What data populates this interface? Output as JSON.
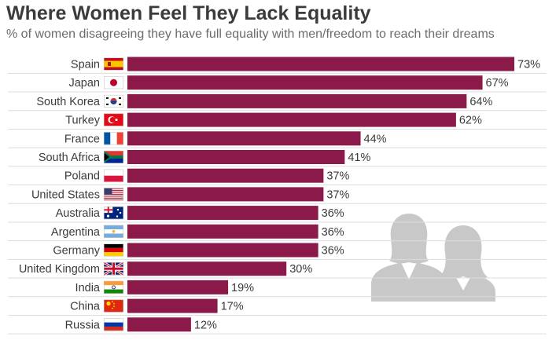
{
  "title": "Where Women Feel They Lack Equality",
  "subtitle": "% of women disagreeing they have full equality with men/freedom to reach their dreams",
  "colors": {
    "bar": "#8b1a4a",
    "grid": "#dcdcdc",
    "silhouette": "#c8c8c8"
  },
  "icons": {
    "decoration": "two-women-silhouette-icon"
  },
  "chart_data": {
    "type": "bar",
    "orientation": "horizontal",
    "title": "Where Women Feel They Lack Equality",
    "subtitle": "% of women disagreeing they have full equality with men/freedom to reach their dreams",
    "xlabel": "",
    "ylabel": "",
    "xlim": [
      0,
      73
    ],
    "categories": [
      "Spain",
      "Japan",
      "South Korea",
      "Turkey",
      "France",
      "South Africa",
      "Poland",
      "United States",
      "Australia",
      "Argentina",
      "Germany",
      "United Kingdom",
      "India",
      "China",
      "Russia"
    ],
    "values": [
      73,
      67,
      64,
      62,
      44,
      41,
      37,
      37,
      36,
      36,
      36,
      30,
      19,
      17,
      12
    ],
    "labels": [
      "73%",
      "67%",
      "64%",
      "62%",
      "44%",
      "41%",
      "37%",
      "37%",
      "36%",
      "36%",
      "36%",
      "30%",
      "19%",
      "17%",
      "12%"
    ],
    "flags": [
      "spain-flag-icon",
      "japan-flag-icon",
      "south-korea-flag-icon",
      "turkey-flag-icon",
      "france-flag-icon",
      "south-africa-flag-icon",
      "poland-flag-icon",
      "united-states-flag-icon",
      "australia-flag-icon",
      "argentina-flag-icon",
      "germany-flag-icon",
      "united-kingdom-flag-icon",
      "india-flag-icon",
      "china-flag-icon",
      "russia-flag-icon"
    ]
  }
}
